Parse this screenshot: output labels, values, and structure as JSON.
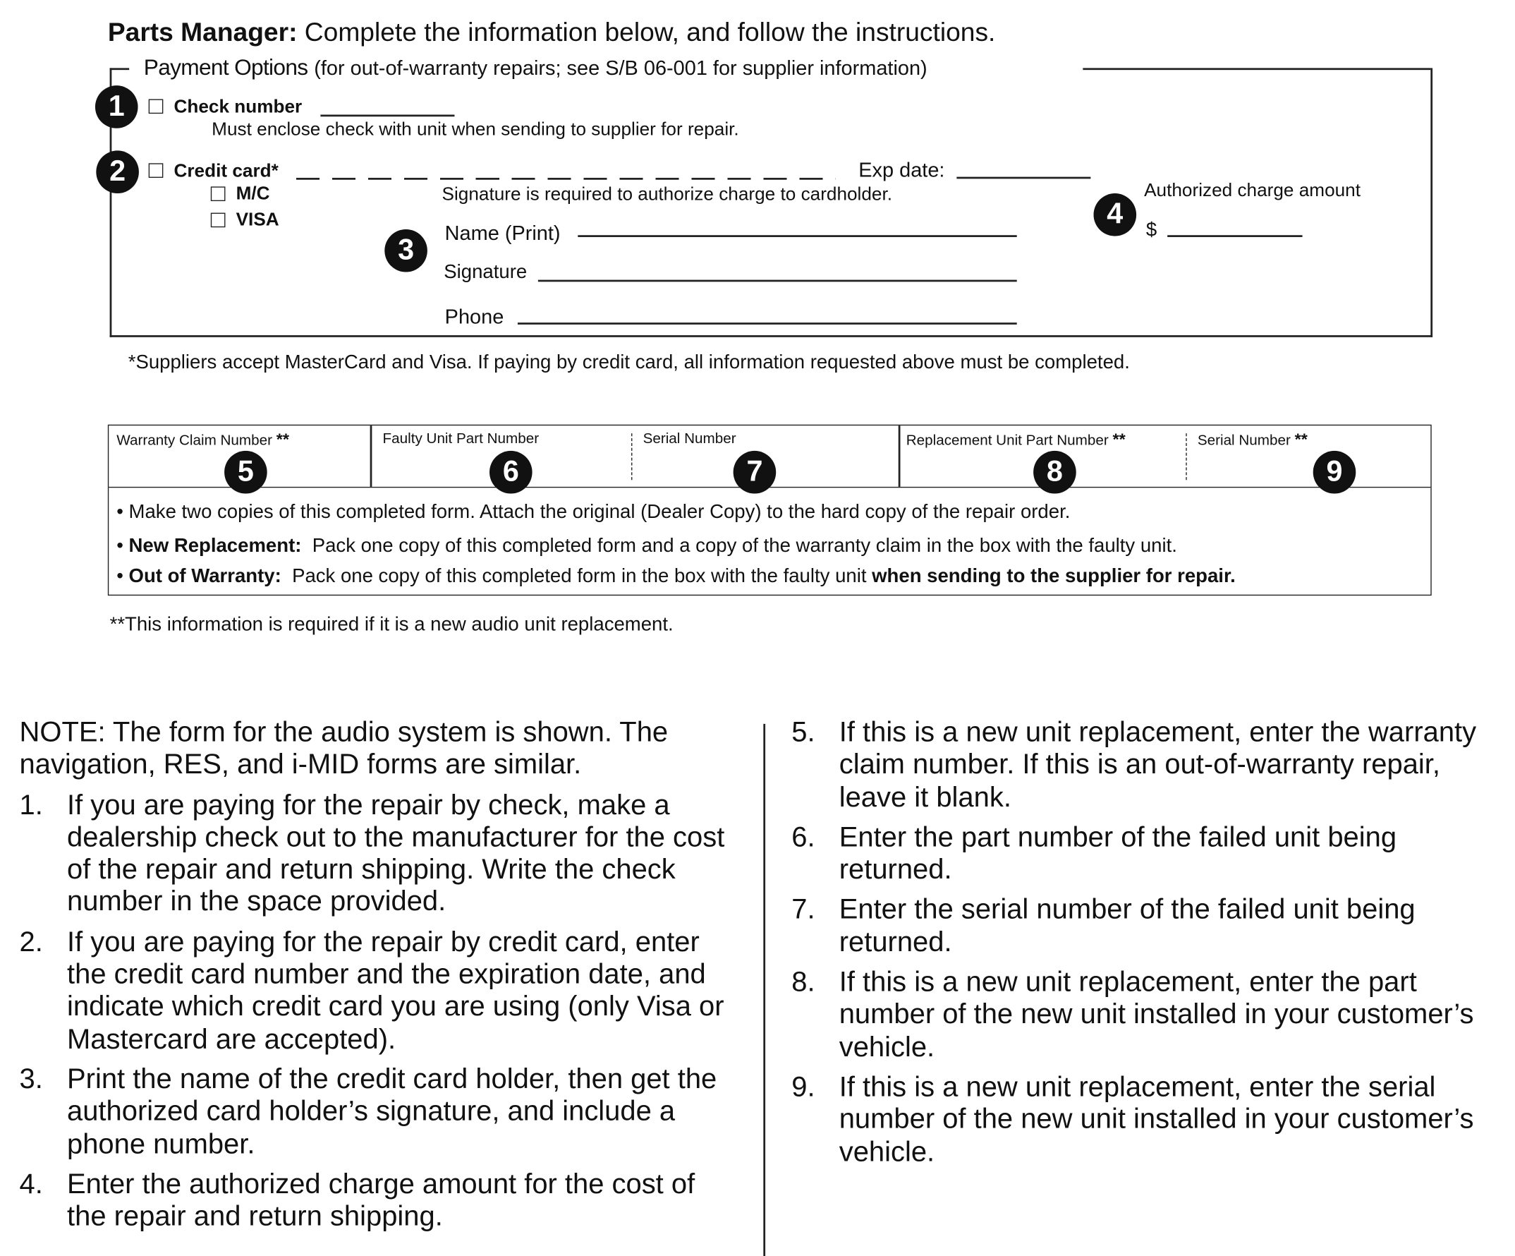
{
  "header": {
    "bold": "Parts Manager:",
    "text": " Complete the information below, and follow the instructions."
  },
  "payment": {
    "legend": "Payment Options",
    "legend_note": "(for out-of-warranty repairs; see S/B 06-001 for supplier information)",
    "check_label": "Check number",
    "check_note": "Must enclose check with unit when sending to supplier for repair.",
    "credit_label": "Credit card*",
    "exp_label": "Exp date:",
    "mc_label": "M/C",
    "visa_label": "VISA",
    "sig_required": "Signature is required to authorize charge to cardholder.",
    "name_label": "Name (Print)",
    "signature_label": "Signature",
    "phone_label": "Phone",
    "amount_label": "Authorized charge amount",
    "currency": "$",
    "footnote": "*Suppliers accept MasterCard and Visa. If paying by credit card, all information requested above must be completed."
  },
  "callouts": [
    "1",
    "2",
    "3",
    "4",
    "5",
    "6",
    "7",
    "8",
    "9"
  ],
  "table": {
    "headers": [
      "Warranty Claim Number",
      "Faulty Unit Part Number",
      "Serial Number",
      "Replacement Unit Part Number",
      "Serial Number"
    ],
    "req_mark": "**",
    "bullets": [
      {
        "bold": "",
        "text": "Make two copies of this completed form. Attach the original (Dealer Copy) to the hard copy of the repair order."
      },
      {
        "bold": "New Replacement:",
        "text": "  Pack one copy of this completed form and a copy of the warranty claim in the box with the faulty unit."
      },
      {
        "bold": "Out of Warranty:",
        "text": "  Pack one copy of this completed form in the box with the faulty unit ",
        "bold2": "when sending to the supplier for repair."
      }
    ],
    "footnote": "**This information is required if it is a new audio unit replacement."
  },
  "instructions": {
    "note": "NOTE: The form for the audio system is shown. The navigation, RES, and i-MID forms are similar.",
    "steps": [
      {
        "n": "1.",
        "text": "If you are paying for the repair by check, make a dealership check out to the manufacturer for the cost of the repair and return shipping. Write the check number in the space provided."
      },
      {
        "n": "2.",
        "text": "If you are paying for the repair by credit card, enter the credit card number and the expiration date, and indicate which credit card you are using (only Visa or Mastercard are accepted)."
      },
      {
        "n": "3.",
        "text": "Print the name of the credit card holder, then get the authorized card holder’s signature, and include a phone number."
      },
      {
        "n": "4.",
        "text": "Enter the authorized charge amount for the cost of the repair and return shipping."
      },
      {
        "n": "5.",
        "text": "If this is a new unit replacement, enter the warranty claim number. If this is an out-of-warranty repair, leave it blank."
      },
      {
        "n": "6.",
        "text": "Enter the part number of the failed unit being returned."
      },
      {
        "n": "7.",
        "text": "Enter the serial number of the failed unit being returned."
      },
      {
        "n": "8.",
        "text": "If this is a new unit replacement, enter the part number of the new unit installed in your customer’s vehicle."
      },
      {
        "n": "9.",
        "text": "If this is a new unit replacement, enter the serial number of the new unit installed in your customer’s vehicle."
      }
    ]
  }
}
